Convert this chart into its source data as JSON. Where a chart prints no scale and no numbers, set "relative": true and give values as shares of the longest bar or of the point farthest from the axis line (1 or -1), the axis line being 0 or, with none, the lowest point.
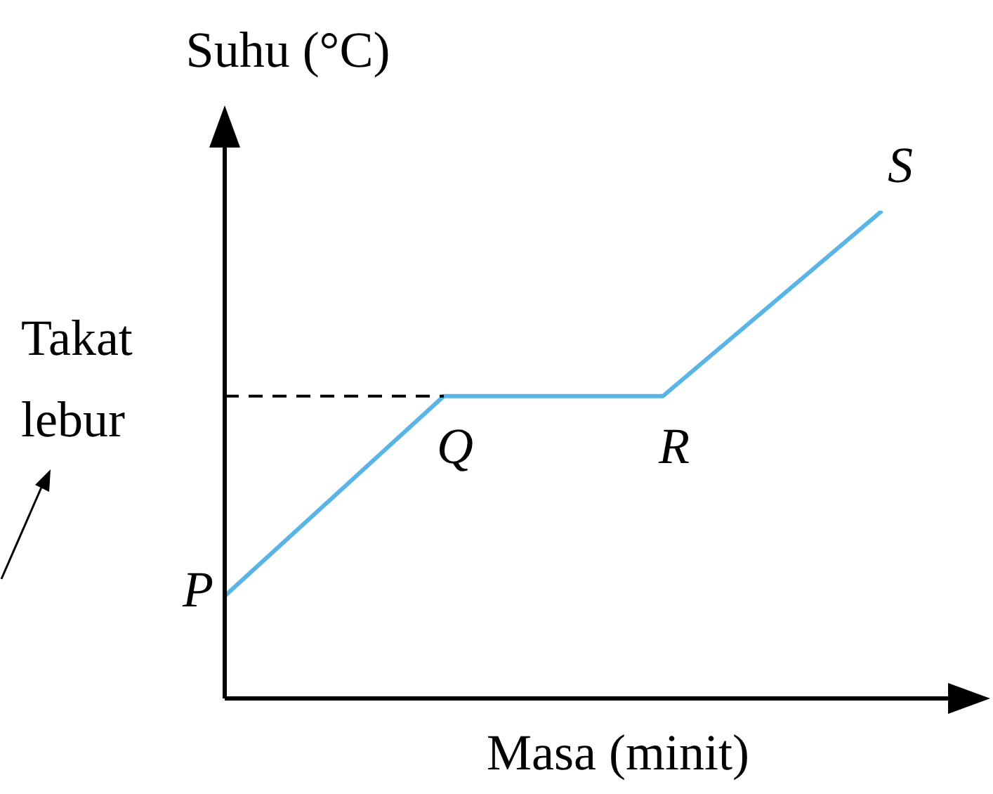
{
  "chart_data": {
    "type": "line",
    "relative": true,
    "xlabel": "Masa (minit)",
    "ylabel": "Suhu (°C)",
    "categories": [
      null,
      null,
      null,
      null
    ],
    "series": [
      {
        "color": "#5ab4e6",
        "values": [
          0.21,
          0.62,
          0.62,
          1
        ]
      }
    ],
    "annotations": [
      "P",
      "Q",
      "R",
      "S"
    ],
    "ref_lines": [
      {
        "axis": "y",
        "value": 0.62,
        "label": "Takat lebur",
        "color": "#000000",
        "line_style": "dashed"
      }
    ],
    "marker": "none",
    "grid": false,
    "legend": false
  }
}
